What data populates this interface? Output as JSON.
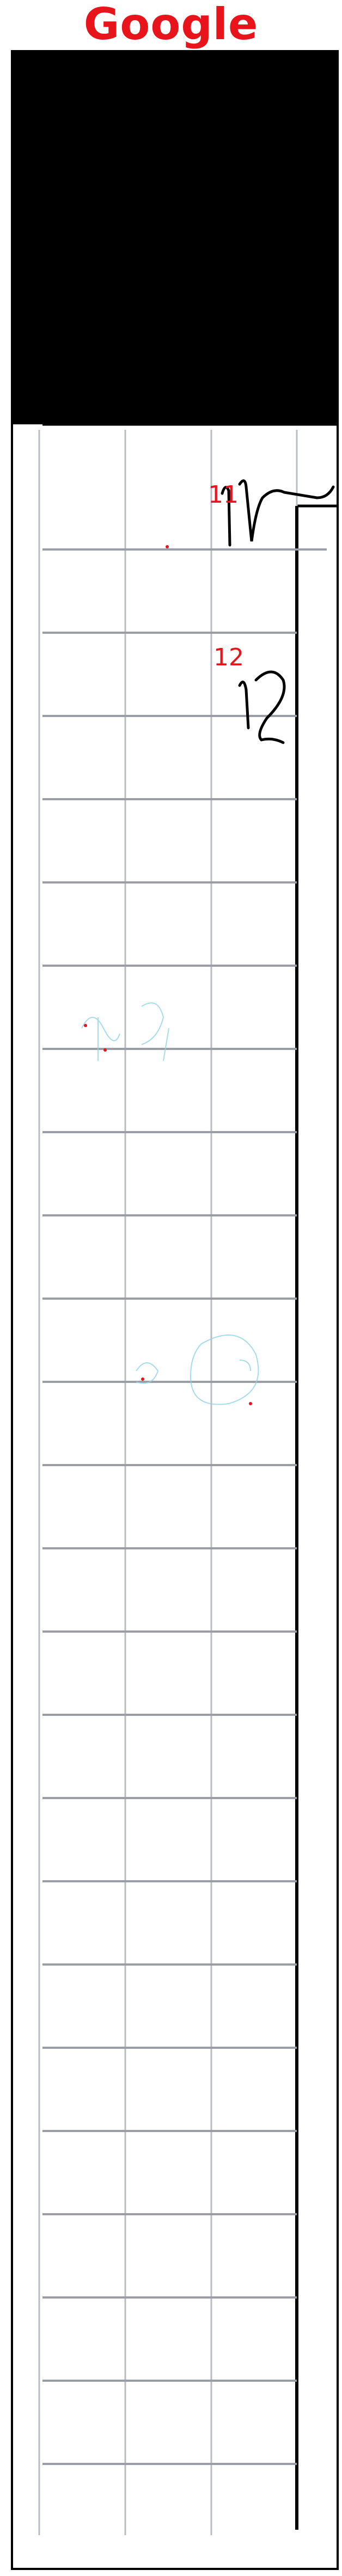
{
  "brand": {
    "name": "Google",
    "color": "#e8141b"
  },
  "document": {
    "kind": "scanned grid worksheet",
    "marks": [
      {
        "label": "11",
        "handwriting": "11"
      },
      {
        "label": "12",
        "handwriting": "12"
      }
    ]
  }
}
